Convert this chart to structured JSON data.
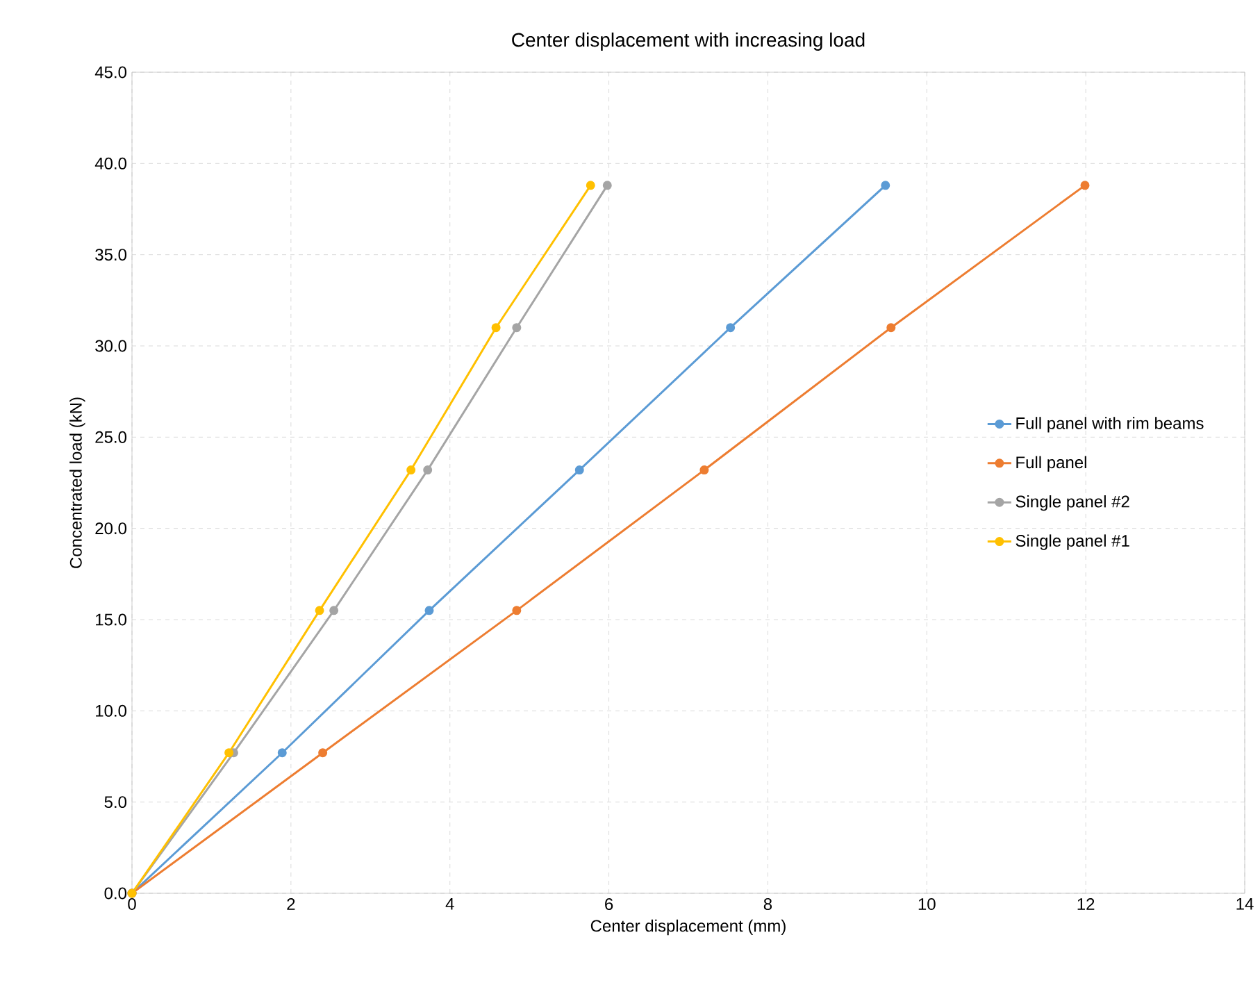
{
  "chart_data": {
    "type": "line",
    "title": "Center displacement with increasing load",
    "xlabel": "Center displacement (mm)",
    "ylabel": "Concentrated load (kN)",
    "xlim": [
      0,
      14
    ],
    "xticks": [
      0,
      2,
      4,
      6,
      8,
      10,
      12,
      14
    ],
    "ylim": [
      0,
      45
    ],
    "yticks": [
      {
        "value": 0,
        "label": "0.0"
      },
      {
        "value": 5,
        "label": "5.0"
      },
      {
        "value": 10,
        "label": "10.0"
      },
      {
        "value": 15,
        "label": "15.0"
      },
      {
        "value": 20,
        "label": "20.0"
      },
      {
        "value": 25,
        "label": "25.0"
      },
      {
        "value": 30,
        "label": "30.0"
      },
      {
        "value": 35,
        "label": "35.0"
      },
      {
        "value": 40,
        "label": "40.0"
      },
      {
        "value": 45,
        "label": "45.0"
      }
    ],
    "grid": true,
    "legend": "right",
    "marker": "circle",
    "series": [
      {
        "name": "Full panel with rim beams",
        "color": "#5b9bd5",
        "x": [
          0,
          1.89,
          3.74,
          5.63,
          7.53,
          9.48
        ],
        "values": [
          0,
          7.7,
          15.5,
          23.2,
          31.0,
          38.8
        ]
      },
      {
        "name": "Full panel",
        "color": "#ed7d31",
        "x": [
          0,
          2.4,
          4.84,
          7.2,
          9.55,
          11.99
        ],
        "values": [
          0,
          7.7,
          15.5,
          23.2,
          31.0,
          38.8
        ]
      },
      {
        "name": "Single panel #2",
        "color": "#a5a5a5",
        "x": [
          0,
          1.28,
          2.54,
          3.72,
          4.84,
          5.98
        ],
        "values": [
          0,
          7.7,
          15.5,
          23.2,
          31.0,
          38.8
        ]
      },
      {
        "name": "Single panel #1",
        "color": "#ffc000",
        "x": [
          0,
          1.22,
          2.36,
          3.51,
          4.58,
          5.77
        ],
        "values": [
          0,
          7.7,
          15.5,
          23.2,
          31.0,
          38.8
        ]
      }
    ]
  }
}
